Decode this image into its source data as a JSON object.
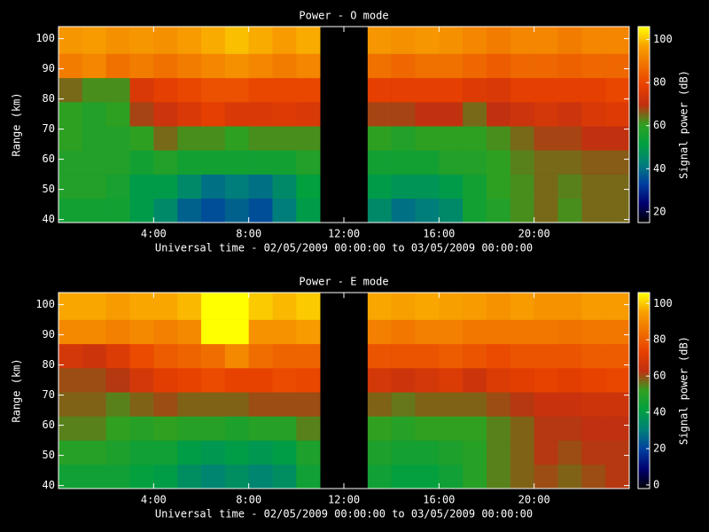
{
  "chart_data": [
    {
      "type": "heatmap",
      "title": "Power - O mode",
      "x_label": "Universal time - 02/05/2009 00:00:00 to 03/05/2009 00:00:00",
      "y_label": "Range (km)",
      "colorbar_label": "Signal power (dB)",
      "x_bins": [
        0,
        1,
        2,
        3,
        4,
        5,
        6,
        7,
        8,
        9,
        10,
        11,
        12,
        13,
        14,
        15,
        16,
        17,
        18,
        19,
        20,
        21,
        22,
        23,
        24
      ],
      "y_bins": [
        39,
        47,
        55,
        63,
        71,
        79,
        87,
        95,
        104
      ],
      "values": [
        [
          55,
          55,
          55,
          50,
          45,
          38,
          35,
          38,
          35,
          42,
          50,
          null,
          null,
          45,
          40,
          42,
          45,
          55,
          58,
          62,
          65,
          62,
          65,
          65
        ],
        [
          58,
          58,
          56,
          50,
          50,
          45,
          40,
          42,
          40,
          45,
          52,
          null,
          null,
          50,
          48,
          48,
          50,
          55,
          60,
          62,
          65,
          63,
          65,
          65
        ],
        [
          58,
          58,
          58,
          55,
          58,
          55,
          55,
          55,
          55,
          55,
          58,
          null,
          null,
          55,
          55,
          55,
          58,
          58,
          60,
          63,
          65,
          65,
          66,
          66
        ],
        [
          60,
          58,
          58,
          60,
          65,
          62,
          62,
          60,
          62,
          62,
          62,
          null,
          null,
          60,
          58,
          60,
          60,
          60,
          62,
          65,
          68,
          68,
          70,
          70
        ],
        [
          60,
          58,
          60,
          68,
          72,
          75,
          78,
          75,
          75,
          76,
          75,
          null,
          null,
          68,
          68,
          70,
          70,
          65,
          70,
          72,
          74,
          72,
          75,
          76
        ],
        [
          65,
          62,
          62,
          75,
          78,
          80,
          82,
          82,
          80,
          80,
          80,
          null,
          null,
          78,
          78,
          78,
          78,
          76,
          75,
          78,
          78,
          78,
          78,
          80
        ],
        [
          90,
          92,
          88,
          90,
          88,
          90,
          92,
          94,
          92,
          90,
          92,
          null,
          null,
          88,
          86,
          88,
          88,
          86,
          84,
          86,
          86,
          85,
          86,
          86
        ],
        [
          95,
          96,
          94,
          95,
          94,
          96,
          98,
          100,
          98,
          96,
          98,
          null,
          null,
          95,
          94,
          95,
          94,
          92,
          90,
          92,
          92,
          90,
          92,
          92
        ]
      ],
      "xlim": [
        0,
        24
      ],
      "ylim": [
        39,
        104
      ],
      "clim": [
        15,
        106
      ],
      "xticks": [
        {
          "value": 4,
          "label": "4:00"
        },
        {
          "value": 8,
          "label": "8:00"
        },
        {
          "value": 12,
          "label": "12:00"
        },
        {
          "value": 16,
          "label": "16:00"
        },
        {
          "value": 20,
          "label": "20:00"
        }
      ],
      "yticks": [
        40,
        50,
        60,
        70,
        80,
        90,
        100
      ],
      "cticks": [
        20,
        40,
        60,
        80,
        100
      ],
      "colormap": [
        "#000000",
        "#000070",
        "#0040a0",
        "#00807a",
        "#00a040",
        "#30a020",
        "#c03010",
        "#e84000",
        "#f07000",
        "#f8a000",
        "#ffff00"
      ]
    },
    {
      "type": "heatmap",
      "title": "Power - E mode",
      "x_label": "Universal time - 02/05/2009 00:00:00 to 03/05/2009 00:00:00",
      "y_label": "Range (km)",
      "colorbar_label": "Signal power (dB)",
      "x_bins": [
        0,
        1,
        2,
        3,
        4,
        5,
        6,
        7,
        8,
        9,
        10,
        11,
        12,
        13,
        14,
        15,
        16,
        17,
        18,
        19,
        20,
        21,
        22,
        23,
        24
      ],
      "y_bins": [
        39,
        47,
        55,
        63,
        71,
        79,
        87,
        95,
        104
      ],
      "values": [
        [
          45,
          45,
          45,
          42,
          40,
          35,
          32,
          35,
          32,
          35,
          45,
          null,
          null,
          45,
          42,
          42,
          45,
          50,
          55,
          58,
          60,
          58,
          60,
          62
        ],
        [
          50,
          50,
          48,
          45,
          45,
          40,
          38,
          40,
          38,
          40,
          48,
          null,
          null,
          48,
          46,
          46,
          48,
          50,
          55,
          58,
          62,
          60,
          62,
          62
        ],
        [
          55,
          55,
          52,
          50,
          52,
          50,
          50,
          48,
          50,
          50,
          55,
          null,
          null,
          52,
          50,
          52,
          52,
          52,
          55,
          58,
          62,
          62,
          63,
          63
        ],
        [
          58,
          58,
          55,
          58,
          60,
          58,
          58,
          58,
          60,
          60,
          60,
          null,
          null,
          58,
          56,
          58,
          58,
          58,
          60,
          62,
          65,
          65,
          66,
          66
        ],
        [
          60,
          60,
          62,
          68,
          72,
          74,
          76,
          74,
          74,
          76,
          75,
          null,
          null,
          68,
          66,
          68,
          70,
          66,
          70,
          72,
          74,
          72,
          74,
          75
        ],
        [
          68,
          66,
          70,
          76,
          80,
          82,
          84,
          90,
          84,
          82,
          82,
          null,
          null,
          78,
          78,
          78,
          80,
          78,
          76,
          78,
          78,
          78,
          80,
          80
        ],
        [
          90,
          90,
          88,
          90,
          88,
          90,
          106,
          106,
          92,
          92,
          94,
          null,
          null,
          88,
          86,
          88,
          88,
          86,
          86,
          86,
          86,
          85,
          86,
          86
        ],
        [
          96,
          96,
          94,
          96,
          96,
          98,
          106,
          106,
          100,
          98,
          100,
          null,
          null,
          96,
          95,
          96,
          95,
          94,
          92,
          94,
          92,
          92,
          94,
          94
        ]
      ],
      "xlim": [
        0,
        24
      ],
      "ylim": [
        39,
        104
      ],
      "clim": [
        -2,
        106
      ],
      "xticks": [
        {
          "value": 4,
          "label": "4:00"
        },
        {
          "value": 8,
          "label": "8:00"
        },
        {
          "value": 12,
          "label": "12:00"
        },
        {
          "value": 16,
          "label": "16:00"
        },
        {
          "value": 20,
          "label": "20:00"
        }
      ],
      "yticks": [
        40,
        50,
        60,
        70,
        80,
        90,
        100
      ],
      "cticks": [
        0,
        20,
        40,
        60,
        80,
        100
      ],
      "colormap": [
        "#000000",
        "#000070",
        "#0040a0",
        "#00807a",
        "#00a040",
        "#30a020",
        "#c03010",
        "#e84000",
        "#f07000",
        "#f8a000",
        "#ffff00"
      ]
    }
  ]
}
